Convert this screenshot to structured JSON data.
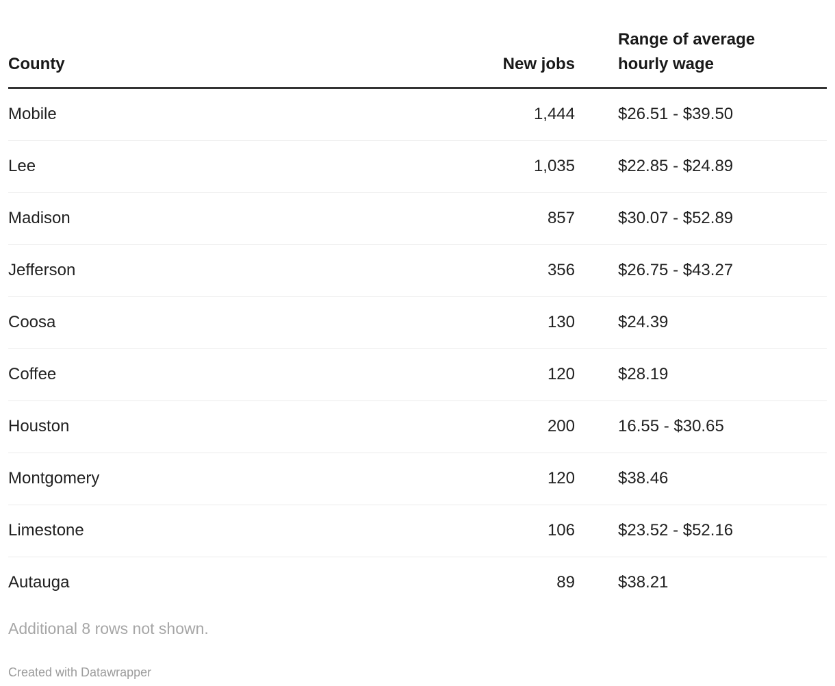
{
  "chart_data": {
    "type": "table",
    "columns": [
      "County",
      "New jobs",
      "Range of average hourly wage"
    ],
    "rows": [
      [
        "Mobile",
        "1,444",
        "$26.51 - $39.50"
      ],
      [
        "Lee",
        "1,035",
        "$22.85 - $24.89"
      ],
      [
        "Madison",
        "857",
        "$30.07 - $52.89"
      ],
      [
        "Jefferson",
        "356",
        "$26.75 - $43.27"
      ],
      [
        "Coosa",
        "130",
        "$24.39"
      ],
      [
        "Coffee",
        "120",
        "$28.19"
      ],
      [
        "Houston",
        "200",
        "16.55 - $30.65"
      ],
      [
        "Montgomery",
        "120",
        "$38.46"
      ],
      [
        "Limestone",
        "106",
        "$23.52 - $52.16"
      ],
      [
        "Autauga",
        "89",
        "$38.21"
      ]
    ],
    "note": "Additional 8 rows not shown.",
    "byline": "Created with Datawrapper",
    "layout_hints": {
      "header_alignments": [
        "left",
        "right",
        "left"
      ],
      "grid": "horizontal-dividers-only"
    }
  },
  "colors": {
    "header_text": "#191919",
    "body_text": "#212121",
    "header_rule": "#333333",
    "row_divider": "#ebebeb",
    "muted_text": "#a6a6a6",
    "background": "#ffffff"
  }
}
